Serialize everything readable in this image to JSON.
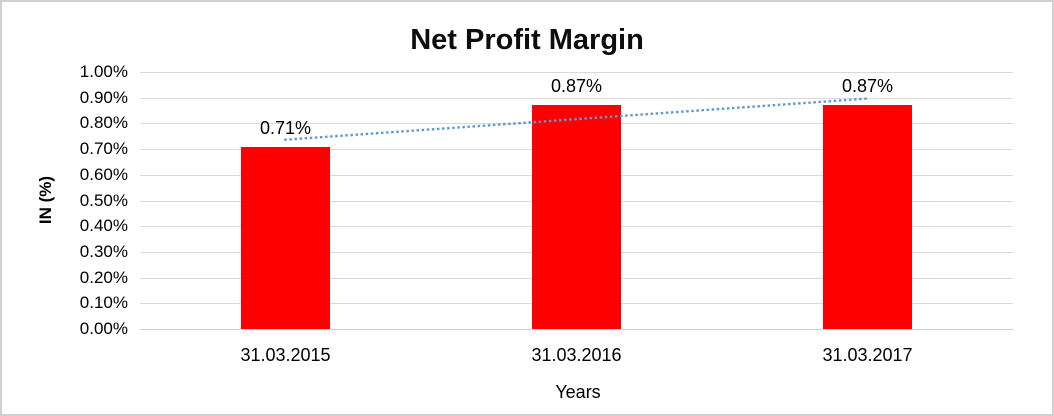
{
  "page": {
    "background_color": "#ffffff",
    "border_color": "#d0d0d0"
  },
  "chart_data": {
    "type": "bar",
    "title": "Net Profit Margin",
    "xlabel": "Years",
    "ylabel": "IN (%)",
    "categories": [
      "31.03.2015",
      "31.03.2016",
      "31.03.2017"
    ],
    "values": [
      0.71,
      0.87,
      0.87
    ],
    "data_labels": [
      "0.71%",
      "0.87%",
      "0.87%"
    ],
    "ylim": [
      0,
      1
    ],
    "ytick_step": 0.1,
    "ytick_labels": [
      "0.00%",
      "0.10%",
      "0.20%",
      "0.30%",
      "0.40%",
      "0.50%",
      "0.60%",
      "0.70%",
      "0.80%",
      "0.90%",
      "1.00%"
    ],
    "grid": true,
    "legend": "none",
    "bar_color": "#ff0000",
    "gridline_color": "#d9d9d9",
    "text_color": "#000000",
    "trendline": {
      "type": "linear",
      "style": "dotted",
      "color": "#5b9bd5"
    }
  }
}
